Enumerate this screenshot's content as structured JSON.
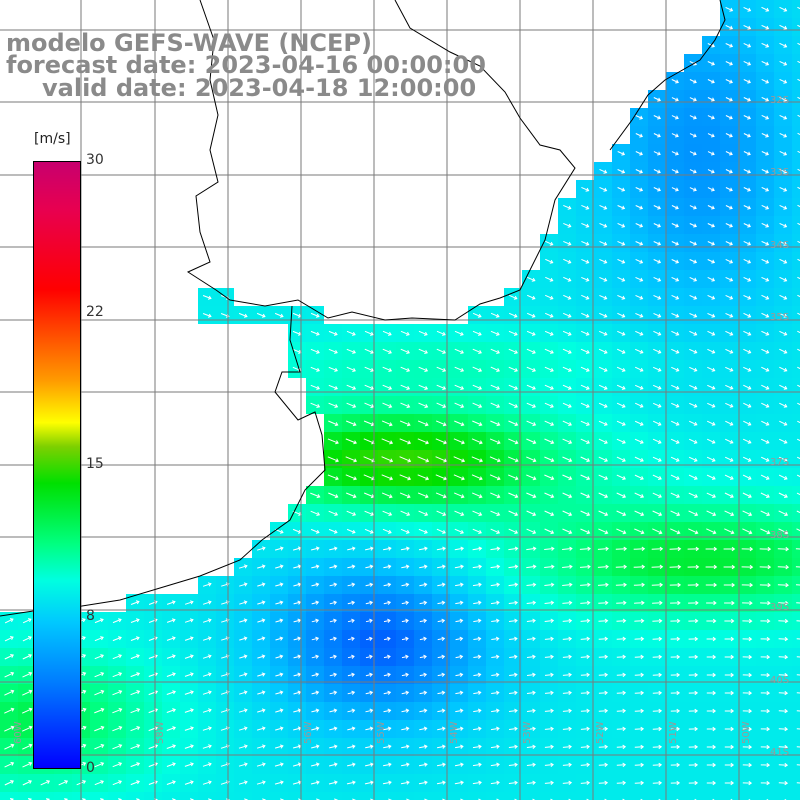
{
  "header": {
    "model_line": "modelo GEFS-WAVE (NCEP)",
    "forecast_line": "forecast date: 2023-04-16 00:00:00",
    "valid_line": "valid date: 2023-04-18 12:00:00"
  },
  "colorbar": {
    "unit": "[m/s]",
    "ticks": [
      "30",
      "22",
      "15",
      "8",
      "0"
    ],
    "colors": [
      "#0000ff",
      "#007bff",
      "#00c8ff",
      "#00ffe0",
      "#00ff80",
      "#00e000",
      "#7cd000",
      "#ffff00",
      "#ff9a00",
      "#ff0000",
      "#e8004f",
      "#c8006e"
    ]
  },
  "lat_labels": [
    "32S",
    "33S",
    "34S",
    "35S",
    "37S",
    "38S",
    "39S",
    "40S",
    "41S"
  ],
  "lon_labels": [
    "60W",
    "58W",
    "56W",
    "55W",
    "54W",
    "53W",
    "52W",
    "51W",
    "50W"
  ],
  "colors": {
    "land": "#ffffff",
    "coast": "#000000",
    "grid": "#7a7a7a",
    "arrow": "#ffffff"
  }
}
